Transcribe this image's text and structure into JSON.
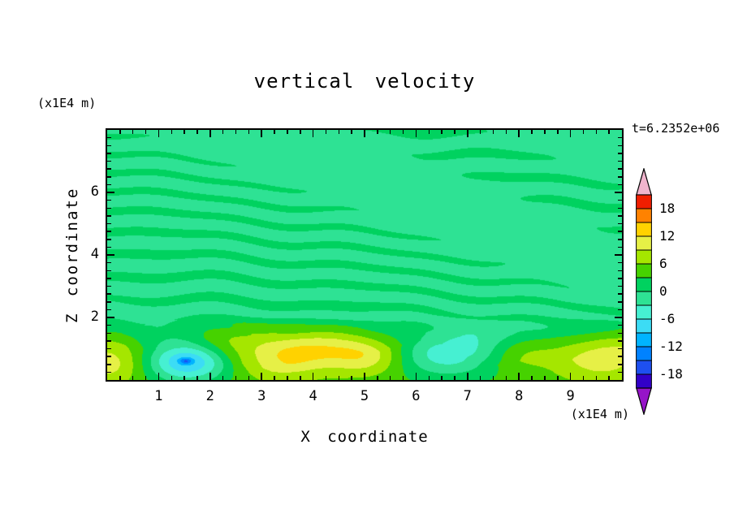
{
  "title": "vertical velocity",
  "time_label": "t=6.2352e+06",
  "axes": {
    "x": {
      "label": "X coordinate",
      "unit": "(x1E4 m)",
      "min": 0,
      "max": 10,
      "major_ticks": [
        1,
        2,
        3,
        4,
        5,
        6,
        7,
        8,
        9
      ],
      "minor_step": 0.25
    },
    "z": {
      "label": "Z coordinate",
      "unit": "(x1E4 m)",
      "min": 0,
      "max": 8,
      "major_ticks": [
        2,
        4,
        6
      ],
      "minor_step": 0.25
    }
  },
  "colorbar": {
    "min": -21,
    "max": 21,
    "band_step": 3,
    "tick_labels": [
      "18",
      "12",
      "6",
      "0",
      "-6",
      "-12",
      "-18"
    ],
    "tick_values": [
      18,
      12,
      6,
      0,
      -6,
      -12,
      -18
    ],
    "band_colors": [
      "#3200c8",
      "#1e50f0",
      "#0082ff",
      "#00b4ff",
      "#3cdcf5",
      "#46f0d2",
      "#2ee294",
      "#00d25f",
      "#46d200",
      "#a5e600",
      "#e6f046",
      "#ffd200",
      "#ff8200",
      "#f01e00"
    ],
    "under_color": "#9614c8",
    "over_color": "#f0b4cd"
  },
  "chart_data": {
    "type": "contour-filled",
    "title": "vertical velocity",
    "xlabel": "X coordinate (x1E4 m)",
    "ylabel": "Z coordinate (x1E4 m)",
    "time": "t=6.2352e+06",
    "xlim": [
      0,
      10
    ],
    "ylim": [
      0,
      8
    ],
    "contour_levels": [
      -21,
      -18,
      -15,
      -12,
      -9,
      -6,
      -3,
      0,
      3,
      6,
      9,
      12,
      15,
      18,
      21
    ],
    "background_value_band": [
      -3,
      0
    ],
    "description": "Filled contour plot of vertical velocity. Above z~2 the field is near zero with thin, nearly horizontal wavy streaks alternating between the -3..0 and 0..3 bands (gravity-wave pattern). Below z~2 a boundary layer of stronger updrafts (+3 to +12, green/yellow blobs) with localized downdrafts (-6 to -15, cyan/blue blobs).",
    "features": [
      {
        "kind": "updraft",
        "x": 0.0,
        "z": 0.55,
        "sx": 0.5,
        "sz": 0.5,
        "amp": 6.5
      },
      {
        "kind": "downdraft",
        "x": 1.55,
        "z": 0.6,
        "sx": 0.55,
        "sz": 0.45,
        "amp": -13
      },
      {
        "kind": "downdraft-core",
        "x": 1.52,
        "z": 0.62,
        "sx": 0.09,
        "sz": 0.07,
        "amp": -7
      },
      {
        "kind": "updraft",
        "x": 2.45,
        "z": 1.35,
        "sx": 0.6,
        "sz": 0.4,
        "amp": 4.5
      },
      {
        "kind": "updraft",
        "x": 3.35,
        "z": 0.8,
        "sx": 0.6,
        "sz": 0.55,
        "amp": 7
      },
      {
        "kind": "updraft",
        "x": 4.35,
        "z": 1.1,
        "sx": 0.85,
        "sz": 0.5,
        "amp": 6
      },
      {
        "kind": "updraft",
        "x": 5.05,
        "z": 0.7,
        "sx": 0.5,
        "sz": 0.4,
        "amp": 5
      },
      {
        "kind": "downdraft",
        "x": 6.6,
        "z": 0.85,
        "sx": 0.75,
        "sz": 0.5,
        "amp": -9
      },
      {
        "kind": "updraft",
        "x": 7.9,
        "z": 0.9,
        "sx": 0.5,
        "sz": 0.4,
        "amp": 4
      },
      {
        "kind": "updraft",
        "x": 9.6,
        "z": 0.8,
        "sx": 0.65,
        "sz": 0.6,
        "amp": 7.2
      }
    ]
  }
}
